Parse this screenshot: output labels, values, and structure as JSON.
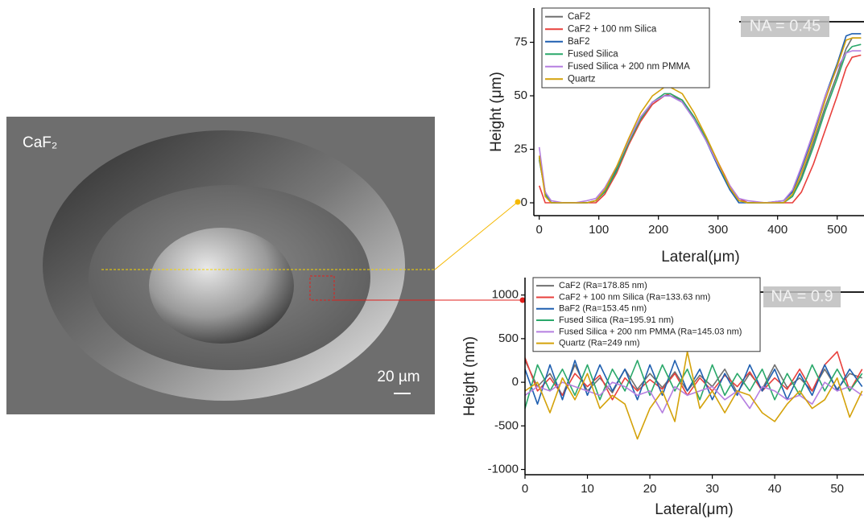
{
  "image_panel": {
    "label": "CaF₂",
    "scale_bar": "20 µm"
  },
  "chart_data": [
    {
      "type": "line",
      "xlabel": "Lateral(μm)",
      "ylabel": "Height (μm)",
      "annotation": "NA = 0.45",
      "legend": "upper left",
      "xlim": [
        -9,
        545
      ],
      "ylim": [
        -6,
        91
      ],
      "xticks": [
        0,
        100,
        200,
        300,
        400,
        500
      ],
      "yticks": [
        0,
        25,
        50,
        75
      ],
      "x": [
        0,
        10,
        20,
        40,
        60,
        80,
        95,
        110,
        130,
        150,
        170,
        190,
        210,
        220,
        240,
        260,
        280,
        300,
        320,
        335,
        350,
        380,
        410,
        425,
        440,
        460,
        480,
        500,
        515,
        525,
        540
      ],
      "series": [
        {
          "name": "CaF2",
          "color": "#707070",
          "values": [
            20,
            5,
            0,
            0,
            0,
            0,
            1,
            5,
            15,
            28,
            39,
            47,
            50,
            50,
            48,
            40,
            30,
            18,
            7,
            1,
            0,
            0,
            0,
            3,
            12,
            28,
            45,
            60,
            72,
            77,
            77
          ]
        },
        {
          "name": "CaF2 + 100 nm Silica",
          "color": "#e8403c",
          "values": [
            8,
            0,
            0,
            0,
            0,
            0,
            0,
            4,
            14,
            27,
            38,
            46,
            50,
            51,
            48,
            40,
            30,
            19,
            8,
            2,
            0,
            0,
            0,
            0,
            5,
            18,
            34,
            50,
            63,
            68,
            69
          ]
        },
        {
          "name": "BaF2",
          "color": "#1f5fb0",
          "values": [
            22,
            5,
            0,
            0,
            0,
            0,
            1,
            6,
            16,
            29,
            40,
            47,
            50,
            50,
            47,
            39,
            29,
            17,
            6,
            0,
            0,
            0,
            1,
            5,
            16,
            32,
            50,
            65,
            78,
            79,
            79
          ]
        },
        {
          "name": "Fused Silica",
          "color": "#2aa86a",
          "values": [
            21,
            4,
            0,
            0,
            0,
            0,
            1,
            5,
            15,
            28,
            39,
            47,
            51,
            51,
            48,
            40,
            30,
            18,
            7,
            1,
            0,
            0,
            0,
            3,
            11,
            26,
            43,
            58,
            70,
            73,
            74
          ]
        },
        {
          "name": "Fused Silica + 200 nm PMMA",
          "color": "#b57fe0",
          "values": [
            26,
            5,
            1,
            0,
            0,
            1,
            2,
            7,
            17,
            29,
            40,
            47,
            50,
            50,
            47,
            39,
            29,
            18,
            8,
            2,
            1,
            0,
            1,
            6,
            17,
            33,
            50,
            63,
            70,
            71,
            71
          ]
        },
        {
          "name": "Quartz",
          "color": "#d4a20a",
          "values": [
            22,
            3,
            0,
            0,
            0,
            0,
            1,
            6,
            17,
            30,
            42,
            50,
            54,
            54,
            51,
            42,
            31,
            19,
            7,
            1,
            0,
            0,
            0,
            4,
            14,
            30,
            48,
            64,
            76,
            77,
            77
          ]
        }
      ]
    },
    {
      "type": "line",
      "xlabel": "Lateral(μm)",
      "ylabel": "Height (nm)",
      "annotation": "NA = 0.9",
      "legend": "upper left",
      "xlim": [
        0,
        54.3
      ],
      "ylim": [
        -1060,
        1200
      ],
      "xticks": [
        0,
        10,
        20,
        30,
        40,
        50
      ],
      "yticks": [
        -1000,
        -500,
        0,
        500,
        1000
      ],
      "x": [
        0,
        2,
        4,
        6,
        8,
        10,
        12,
        14,
        16,
        18,
        20,
        22,
        24,
        26,
        28,
        30,
        32,
        34,
        36,
        38,
        40,
        42,
        44,
        46,
        48,
        50,
        52,
        54
      ],
      "series": [
        {
          "name": "CaF2 (Ra=178.85 nm)",
          "color": "#707070",
          "values": [
            250,
            -50,
            100,
            -150,
            200,
            -100,
            50,
            -120,
            150,
            -80,
            100,
            -60,
            120,
            -100,
            80,
            -50,
            150,
            -120,
            100,
            -80,
            200,
            -60,
            50,
            -100,
            150,
            -80,
            100,
            50
          ]
        },
        {
          "name": "CaF2 + 100 nm Silica (Ra=133.63 nm)",
          "color": "#e8403c",
          "values": [
            280,
            -100,
            50,
            -150,
            100,
            -50,
            80,
            -200,
            50,
            -100,
            30,
            -80,
            100,
            -150,
            50,
            -100,
            80,
            -50,
            120,
            -100,
            50,
            -80,
            150,
            -100,
            200,
            350,
            -100,
            150
          ]
        },
        {
          "name": "BaF2 (Ra=153.45 nm)",
          "color": "#1f5fb0",
          "values": [
            150,
            -250,
            200,
            -200,
            250,
            -150,
            200,
            -100,
            150,
            -200,
            200,
            -150,
            250,
            -100,
            150,
            -200,
            100,
            -150,
            200,
            -100,
            150,
            -200,
            100,
            -150,
            200,
            -100,
            150,
            -50
          ]
        },
        {
          "name": "Fused Silica (Ra=195.91 nm)",
          "color": "#2aa86a",
          "values": [
            -300,
            200,
            -100,
            150,
            -150,
            200,
            -200,
            150,
            -100,
            250,
            -150,
            200,
            -100,
            150,
            -200,
            200,
            -150,
            100,
            -100,
            150,
            -200,
            100,
            -150,
            200,
            -100,
            150,
            -100,
            100
          ]
        },
        {
          "name": "Fused Silica + 200 nm PMMA (Ra=145.03 nm)",
          "color": "#b57fe0",
          "values": [
            -150,
            -50,
            -100,
            0,
            -50,
            -100,
            -150,
            0,
            -50,
            -150,
            -100,
            -350,
            -50,
            -150,
            -100,
            -50,
            -200,
            -100,
            -300,
            -50,
            -100,
            -200,
            -150,
            -250,
            0,
            -100,
            -50,
            -150
          ]
        },
        {
          "name": "Quartz (Ra=249 nm)",
          "color": "#d4a20a",
          "values": [
            -100,
            0,
            -350,
            50,
            -200,
            100,
            -300,
            -150,
            -250,
            -650,
            -300,
            -100,
            -450,
            350,
            -300,
            -100,
            -350,
            -100,
            -150,
            -350,
            -450,
            -250,
            -100,
            -300,
            -200,
            50,
            -400,
            -100
          ]
        }
      ]
    }
  ]
}
